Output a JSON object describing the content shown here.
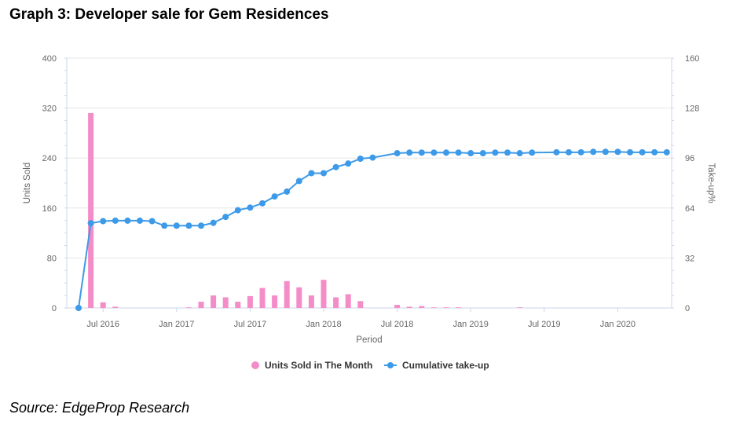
{
  "title": "Graph 3: Developer sale for Gem Residences",
  "source": "Source: EdgeProp Research",
  "chart_data": {
    "type": "bar+line",
    "xlabel": "Period",
    "ylabel_left": "Units Sold",
    "ylabel_right": "Take-up%",
    "ylim_left": [
      0,
      400
    ],
    "ylim_right": [
      0,
      160
    ],
    "yticks_left": [
      "0",
      "80",
      "160",
      "240",
      "320",
      "400"
    ],
    "yticks_right": [
      "0",
      "32",
      "64",
      "96",
      "128",
      "160"
    ],
    "xticks": [
      {
        "label": "Jul 2016",
        "month_index": 2
      },
      {
        "label": "Jan 2017",
        "month_index": 8
      },
      {
        "label": "Jul 2017",
        "month_index": 14
      },
      {
        "label": "Jan 2018",
        "month_index": 20
      },
      {
        "label": "Jul 2018",
        "month_index": 26
      },
      {
        "label": "Jan 2019",
        "month_index": 32
      },
      {
        "label": "Jul 2019",
        "month_index": 38
      },
      {
        "label": "Jan 2020",
        "month_index": 44
      }
    ],
    "grid": true,
    "legend_position": "bottom-center",
    "colors": {
      "bar": "#f48cc8",
      "line": "#3d9ae8",
      "grid": "#e6e6e6",
      "axis": "#ccd6eb"
    },
    "series": [
      {
        "name": "Units Sold in The Month",
        "type": "bar",
        "axis": "left",
        "points": [
          [
            0,
            0
          ],
          [
            1,
            312
          ],
          [
            2,
            9
          ],
          [
            3,
            2
          ],
          [
            4,
            0
          ],
          [
            5,
            0
          ],
          [
            6,
            0
          ],
          [
            7,
            0
          ],
          [
            8,
            0
          ],
          [
            9,
            1
          ],
          [
            10,
            10
          ],
          [
            11,
            20
          ],
          [
            12,
            17
          ],
          [
            13,
            10
          ],
          [
            14,
            19
          ],
          [
            15,
            32
          ],
          [
            16,
            20
          ],
          [
            17,
            43
          ],
          [
            18,
            33
          ],
          [
            19,
            20
          ],
          [
            20,
            45
          ],
          [
            21,
            17
          ],
          [
            22,
            22
          ],
          [
            23,
            11
          ],
          [
            24,
            0
          ],
          [
            25,
            0
          ],
          [
            26,
            5
          ],
          [
            27,
            2
          ],
          [
            28,
            3
          ],
          [
            29,
            1
          ],
          [
            30,
            1
          ],
          [
            31,
            1
          ],
          [
            32,
            0
          ],
          [
            33,
            0
          ],
          [
            34,
            0
          ],
          [
            35,
            0
          ],
          [
            36,
            1
          ],
          [
            37,
            0
          ],
          [
            38,
            0
          ],
          [
            39,
            0
          ],
          [
            40,
            0
          ],
          [
            41,
            0
          ],
          [
            42,
            0
          ],
          [
            43,
            0
          ],
          [
            44,
            0
          ],
          [
            45,
            0
          ],
          [
            46,
            0
          ]
        ]
      },
      {
        "name": "Cumulative take-up",
        "type": "line",
        "axis": "right",
        "points": [
          [
            0,
            0
          ],
          [
            1,
            54.3
          ],
          [
            2,
            55.6
          ],
          [
            3,
            55.9
          ],
          [
            4,
            55.9
          ],
          [
            5,
            55.9
          ],
          [
            6,
            55.6
          ],
          [
            7,
            52.7
          ],
          [
            8,
            52.7
          ],
          [
            9,
            52.7
          ],
          [
            10,
            52.7
          ],
          [
            11,
            54.5
          ],
          [
            12,
            58.3
          ],
          [
            13,
            62.6
          ],
          [
            14,
            64.3
          ],
          [
            15,
            67.0
          ],
          [
            16,
            71.4
          ],
          [
            17,
            74.5
          ],
          [
            18,
            81.3
          ],
          [
            19,
            86.3
          ],
          [
            20,
            86.3
          ],
          [
            21,
            90.2
          ],
          [
            22,
            92.5
          ],
          [
            23,
            95.6
          ],
          [
            24,
            96.3
          ],
          [
            26,
            99.1
          ],
          [
            27,
            99.5
          ],
          [
            28,
            99.5
          ],
          [
            29,
            99.5
          ],
          [
            30,
            99.5
          ],
          [
            31,
            99.5
          ],
          [
            32,
            99.1
          ],
          [
            33,
            99.1
          ],
          [
            34,
            99.5
          ],
          [
            35,
            99.5
          ],
          [
            36,
            99.1
          ],
          [
            37,
            99.5
          ],
          [
            39,
            99.7
          ],
          [
            40,
            99.7
          ],
          [
            41,
            99.7
          ],
          [
            42,
            100.0
          ],
          [
            43,
            100.0
          ],
          [
            44,
            100.0
          ],
          [
            45,
            99.7
          ],
          [
            46,
            99.7
          ],
          [
            47,
            99.7
          ],
          [
            48,
            99.7
          ]
        ]
      }
    ]
  }
}
